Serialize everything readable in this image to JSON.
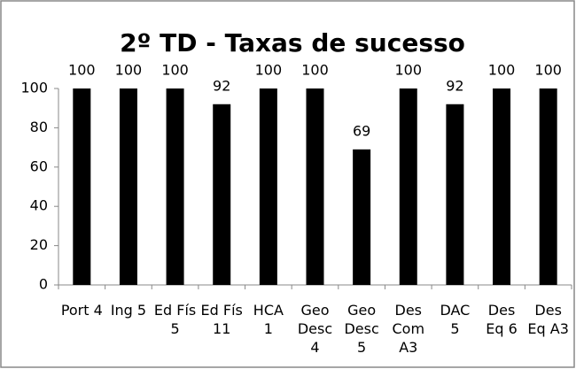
{
  "chart_data": {
    "type": "bar",
    "title": "2º TD - Taxas de sucesso",
    "categories": [
      "Port 4",
      "Ing 5",
      "Ed Fís 5",
      "Ed Fís 11",
      "HCA 1",
      "Geo Desc 4",
      "Geo Desc 5",
      "Des Com A3",
      "DAC 5",
      "Des Eq 6",
      "Des Eq A3"
    ],
    "values": [
      100,
      100,
      100,
      92,
      100,
      100,
      69,
      100,
      92,
      100,
      100
    ],
    "color": "#000000",
    "ylim": [
      0,
      100
    ],
    "yticks": [
      0,
      20,
      40,
      60,
      80,
      100
    ],
    "grid": false
  }
}
